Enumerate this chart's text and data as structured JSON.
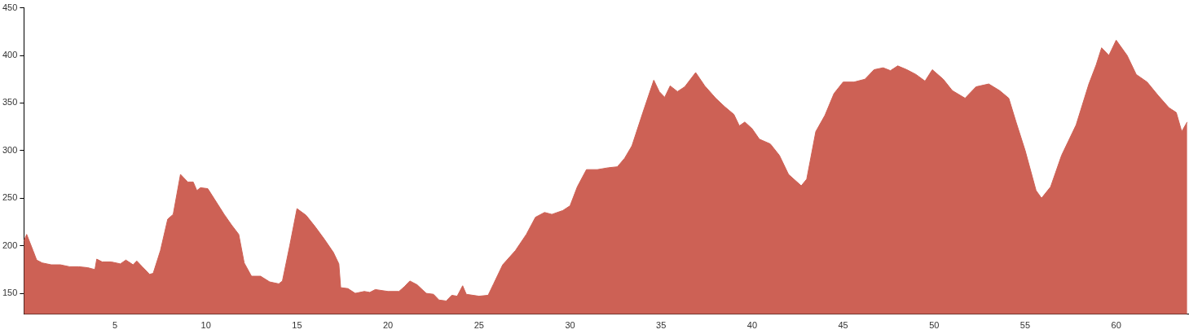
{
  "chart_data": {
    "type": "area",
    "color": "#cd6155",
    "xlim": [
      0,
      64
    ],
    "ylim": [
      128,
      450
    ],
    "xticks": [
      5,
      10,
      15,
      20,
      25,
      30,
      35,
      40,
      45,
      50,
      55,
      60
    ],
    "yticks": [
      150,
      200,
      250,
      300,
      350,
      400,
      450
    ],
    "grid": false,
    "legend": false,
    "marker": "none",
    "x": [
      0,
      0.15,
      0.5,
      0.7,
      1,
      1.5,
      2,
      2.5,
      3,
      3.5,
      3.9,
      4.0,
      4.3,
      4.8,
      5.3,
      5.6,
      6.0,
      6.2,
      6.5,
      6.9,
      7.1,
      7.5,
      7.9,
      8.2,
      8.6,
      9.0,
      9.3,
      9.5,
      9.7,
      10.1,
      10.5,
      11.0,
      11.4,
      11.8,
      12.1,
      12.5,
      13.0,
      13.5,
      14.0,
      14.2,
      14.6,
      15.0,
      15.5,
      16.0,
      16.5,
      17.0,
      17.3,
      17.4,
      17.8,
      18.2,
      18.7,
      19.0,
      19.3,
      20.0,
      20.6,
      20.9,
      21.2,
      21.6,
      22.1,
      22.5,
      22.8,
      23.2,
      23.5,
      23.8,
      24.1,
      24.3,
      25.0,
      25.5,
      25.8,
      26.3,
      27.0,
      27.6,
      28.1,
      28.6,
      29.0,
      29.6,
      30.0,
      30.4,
      30.9,
      31.5,
      32.1,
      32.6,
      33.0,
      33.4,
      34.0,
      34.6,
      34.9,
      35.2,
      35.5,
      35.9,
      36.3,
      36.9,
      37.4,
      38.0,
      38.5,
      39.0,
      39.3,
      39.6,
      40.0,
      40.4,
      41.0,
      41.5,
      42.0,
      42.7,
      43.0,
      43.5,
      44.0,
      44.5,
      45.0,
      45.6,
      46.2,
      46.7,
      47.2,
      47.6,
      48.0,
      48.5,
      49.0,
      49.5,
      49.9,
      50.5,
      51.0,
      51.7,
      52.3,
      53.0,
      53.6,
      54.1,
      54.5,
      55.0,
      55.6,
      55.9,
      56.4,
      57.0,
      57.8,
      58.5,
      58.9,
      59.2,
      59.6,
      60.0,
      60.6,
      61.1,
      61.7,
      62.3,
      62.9,
      63.3,
      63.6,
      63.9
    ],
    "values": [
      205,
      212,
      195,
      185,
      182,
      180,
      180,
      178,
      178,
      177,
      175,
      186,
      183,
      183,
      181,
      185,
      180,
      184,
      178,
      170,
      171,
      195,
      228,
      233,
      275,
      267,
      267,
      258,
      261,
      260,
      248,
      233,
      222,
      212,
      182,
      168,
      168,
      162,
      160,
      163,
      200,
      239,
      232,
      220,
      207,
      193,
      181,
      156,
      155,
      150,
      152,
      151,
      154,
      152,
      152,
      157,
      163,
      159,
      150,
      149,
      143,
      142,
      148,
      147,
      158,
      149,
      147,
      148,
      160,
      180,
      195,
      212,
      230,
      235,
      233,
      237,
      242,
      262,
      280,
      280,
      282,
      283,
      292,
      305,
      340,
      374,
      362,
      356,
      368,
      362,
      367,
      382,
      368,
      355,
      346,
      338,
      326,
      330,
      323,
      312,
      307,
      295,
      275,
      263,
      270,
      320,
      337,
      360,
      372,
      372,
      375,
      385,
      387,
      384,
      389,
      385,
      380,
      373,
      385,
      375,
      363,
      355,
      367,
      370,
      363,
      355,
      330,
      300,
      258,
      250,
      262,
      295,
      327,
      370,
      390,
      408,
      400,
      416,
      400,
      380,
      372,
      358,
      345,
      340,
      320,
      330
    ]
  }
}
